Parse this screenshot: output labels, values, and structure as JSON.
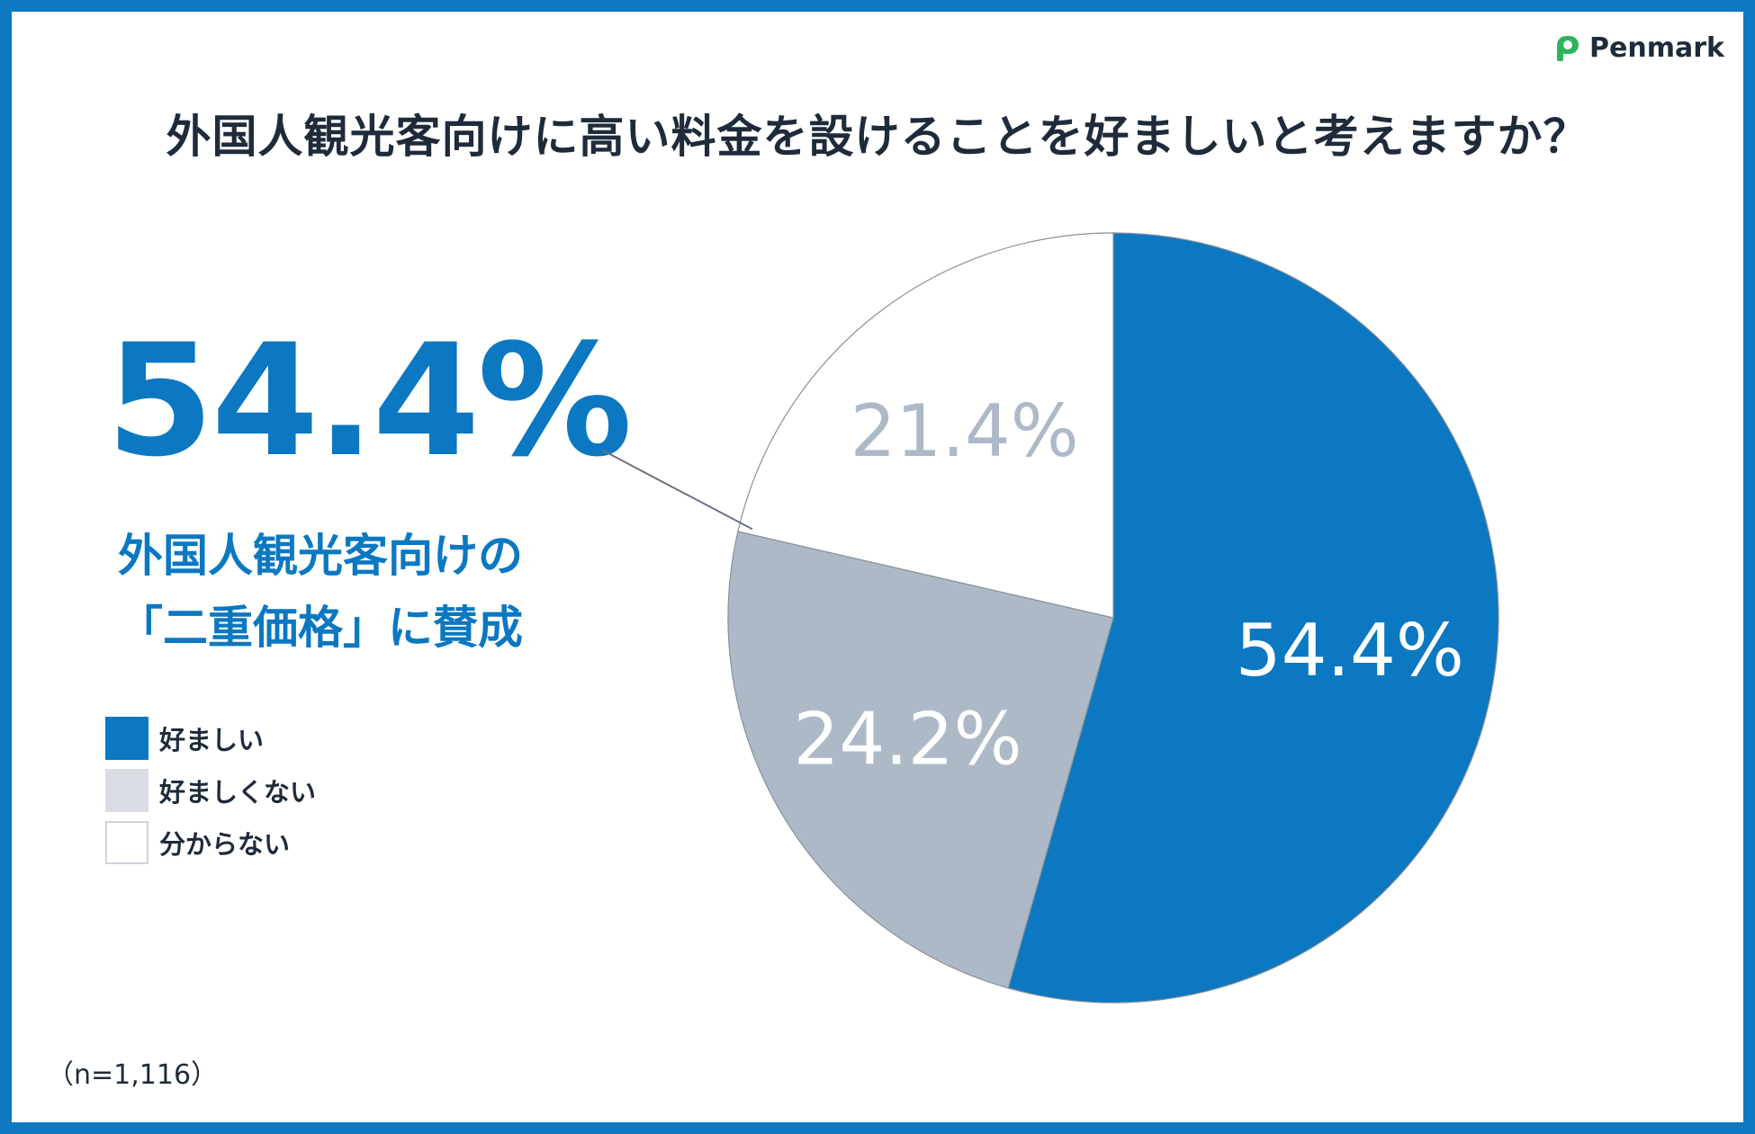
{
  "brand": {
    "name": "Penmark"
  },
  "headline": {
    "percent": "54.4%",
    "lines": [
      "外国人観光客向けの",
      "「二重価格」に賛成"
    ]
  },
  "sample_note": "（n=1,116）",
  "chart_data": {
    "type": "pie",
    "title": "外国人観光客向けに高い料金を設けることを好ましいと考えますか？",
    "slices": [
      {
        "label": "好ましい",
        "value": 54.4,
        "display": "54.4%",
        "color": "#0b78c1",
        "label_color": "#ffffff"
      },
      {
        "label": "好ましくない",
        "value": 24.2,
        "display": "24.2%",
        "color": "#aeb9c8",
        "label_color": "#ffffff"
      },
      {
        "label": "分からない",
        "value": 21.4,
        "display": "21.4%",
        "color": "#ffffff",
        "label_color": "#aeb9c8"
      }
    ],
    "legend": [
      {
        "label": "好ましい",
        "color": "#0b78c1"
      },
      {
        "label": "好ましくない",
        "color": "#d9dde3"
      },
      {
        "label": "分からない",
        "color": "#ffffff"
      }
    ],
    "legend_position": "left",
    "start_angle": "12 o'clock",
    "direction": "clockwise"
  }
}
